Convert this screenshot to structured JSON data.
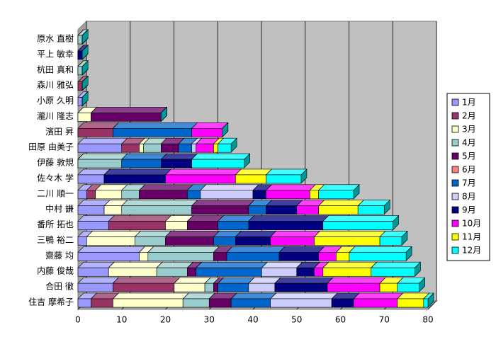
{
  "chart_data": {
    "type": "bar3d_stacked_horizontal",
    "categories": [
      "原水 直樹",
      "平上 敏幸",
      "杭田 真和",
      "森川 雅弘",
      "小原 久明",
      "瀧川 隆志",
      "濱田 昇",
      "田原 由美子",
      "伊藤 敦規",
      "佐々木 学",
      "二川 順一",
      "中村 謙",
      "番所 拓也",
      "三鴨 裕二",
      "齋藤 均",
      "内藤 俊哉",
      "合田 徹",
      "住吉 摩希子"
    ],
    "series": [
      {
        "name": "1月",
        "color": "#9999FF",
        "values": [
          0,
          0,
          0,
          0,
          1,
          0,
          0,
          10,
          0,
          6,
          2,
          6,
          7,
          2,
          14,
          7,
          8,
          3
        ]
      },
      {
        "name": "2月",
        "color": "#993366",
        "values": [
          0,
          0,
          0,
          1,
          0,
          0,
          8,
          4,
          0,
          0,
          2,
          0,
          13,
          0,
          0,
          0,
          14,
          5
        ]
      },
      {
        "name": "3月",
        "color": "#FFFFCC",
        "values": [
          0,
          0,
          0,
          0,
          0,
          3,
          0,
          1,
          0,
          0,
          6,
          4,
          5,
          11,
          2,
          11,
          7,
          16
        ]
      },
      {
        "name": "4月",
        "color": "#99CCCC",
        "values": [
          1,
          0,
          1,
          0,
          0,
          0,
          0,
          4,
          10,
          0,
          4,
          16,
          0,
          7,
          15,
          7,
          2,
          6
        ]
      },
      {
        "name": "5月",
        "color": "#660066",
        "values": [
          0,
          0,
          0,
          0,
          0,
          16,
          0,
          4,
          0,
          0,
          11,
          13,
          7,
          11,
          3,
          2,
          1,
          5
        ]
      },
      {
        "name": "6月",
        "color": "#FF8080",
        "values": [
          0,
          0,
          0,
          0,
          0,
          0,
          0,
          0,
          0,
          0,
          0,
          0,
          0,
          0,
          0,
          0,
          0,
          0
        ]
      },
      {
        "name": "7月",
        "color": "#0066CC",
        "values": [
          0,
          0,
          0,
          0,
          0,
          0,
          18,
          3,
          9,
          0,
          3,
          4,
          7,
          5,
          12,
          15,
          7,
          9
        ]
      },
      {
        "name": "8月",
        "color": "#CCCCFF",
        "values": [
          0,
          0,
          0,
          0,
          0,
          0,
          0,
          1,
          0,
          0,
          12,
          0,
          0,
          0,
          0,
          8,
          6,
          14
        ]
      },
      {
        "name": "9月",
        "color": "#000080",
        "values": [
          0,
          1,
          0,
          0,
          0,
          0,
          0,
          0,
          7,
          14,
          3,
          7,
          17,
          8,
          9,
          4,
          12,
          5
        ]
      },
      {
        "name": "10月",
        "color": "#FF00FF",
        "values": [
          0,
          0,
          0,
          0,
          0,
          0,
          7,
          4,
          0,
          16,
          10,
          5,
          0,
          10,
          4,
          2,
          12,
          10
        ]
      },
      {
        "name": "11月",
        "color": "#FFFF00",
        "values": [
          0,
          0,
          0,
          0,
          0,
          0,
          0,
          1,
          0,
          7,
          2,
          9,
          0,
          15,
          3,
          11,
          4,
          6
        ]
      },
      {
        "name": "12月",
        "color": "#00FFFF",
        "values": [
          0,
          0,
          0,
          0,
          0,
          0,
          0,
          3,
          12,
          8,
          8,
          6,
          16,
          5,
          13,
          10,
          5,
          1
        ]
      }
    ],
    "xlim": [
      0,
      80
    ],
    "xticks": [
      0,
      10,
      20,
      30,
      40,
      50,
      60,
      70,
      80
    ],
    "grid": true,
    "legend": "right"
  }
}
